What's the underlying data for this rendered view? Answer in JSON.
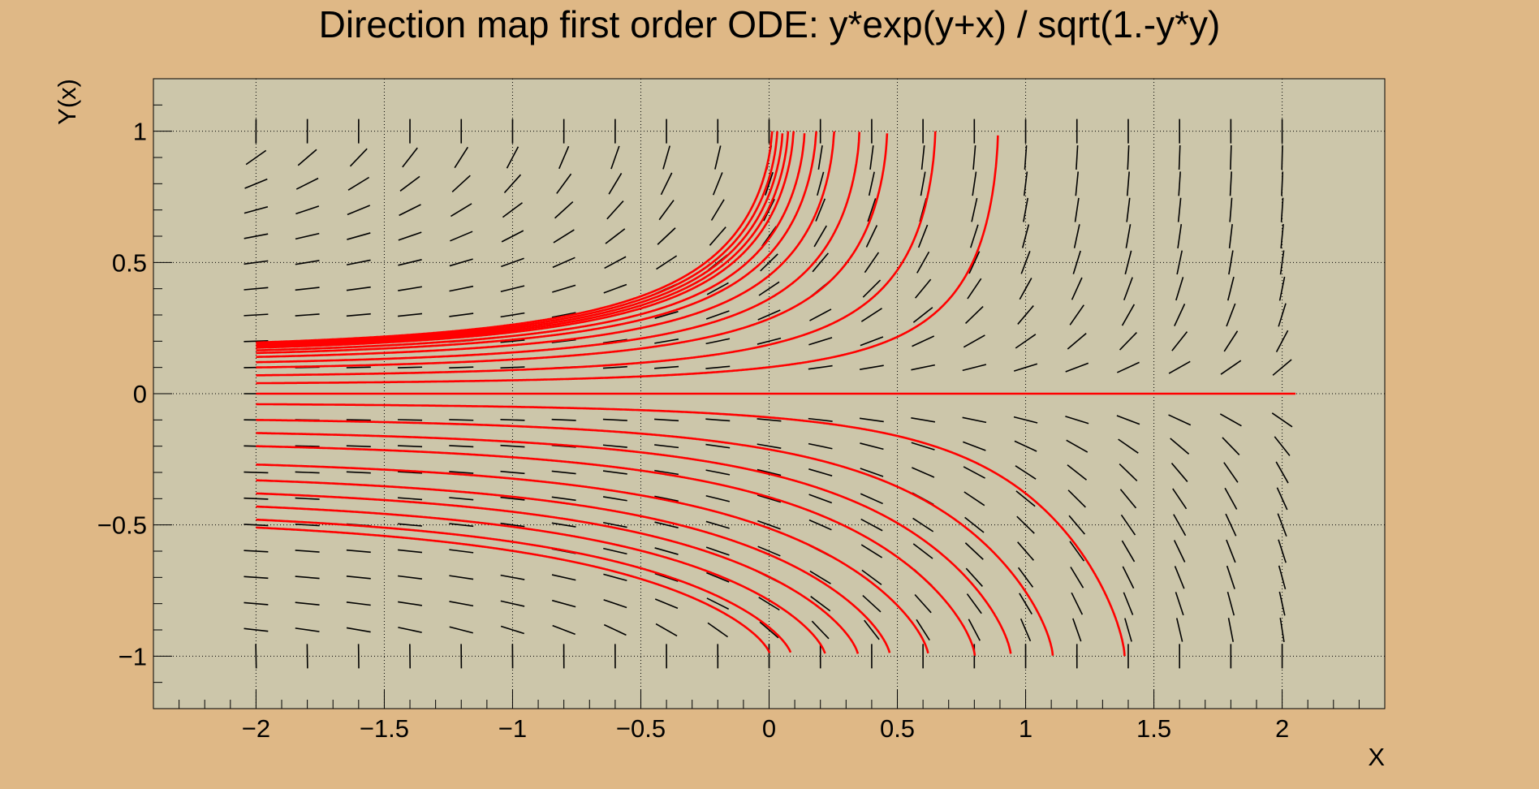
{
  "chart_data": {
    "type": "line",
    "title": "Direction map first order ODE: y*exp(y+x) / sqrt(1.-y*y)",
    "xlabel": "X",
    "ylabel": "Y(x)",
    "xlim": [
      -2.4,
      2.4
    ],
    "ylim": [
      -1.2,
      1.2
    ],
    "x_ticks": [
      -2,
      -1.5,
      -1,
      -0.5,
      0,
      0.5,
      1,
      1.5,
      2
    ],
    "x_tick_labels": [
      "−2",
      "−1.5",
      "−1",
      "−0.5",
      "0",
      "0.5",
      "1",
      "1.5",
      "2"
    ],
    "y_ticks": [
      -1,
      -0.5,
      0,
      0.5,
      1
    ],
    "y_tick_labels": [
      "−1",
      "−0.5",
      "0",
      "0.5",
      "1"
    ],
    "grid": true,
    "direction_field": {
      "equation": "y*exp(y+x) / sqrt(1.-y*y)",
      "x_range": [
        -2,
        2
      ],
      "y_range": [
        -1,
        1
      ],
      "nx": 21,
      "ny": 21,
      "color": "#000000"
    },
    "series": [
      {
        "color": "#ff0000",
        "solution_curves": true,
        "x_start": -2,
        "initial_y": [
          -0.51,
          -0.48,
          -0.43,
          -0.38,
          -0.33,
          -0.27,
          -0.2,
          -0.15,
          -0.1,
          -0.04,
          0,
          0.04,
          0.07,
          0.1,
          0.12,
          0.14,
          0.155,
          0.165,
          0.175,
          0.18,
          0.185,
          0.19,
          0.195
        ]
      }
    ],
    "colors": {
      "page_background": "#dfb886",
      "plot_background": "#ccc6aa",
      "field": "#000000",
      "curves": "#ff0000"
    }
  }
}
